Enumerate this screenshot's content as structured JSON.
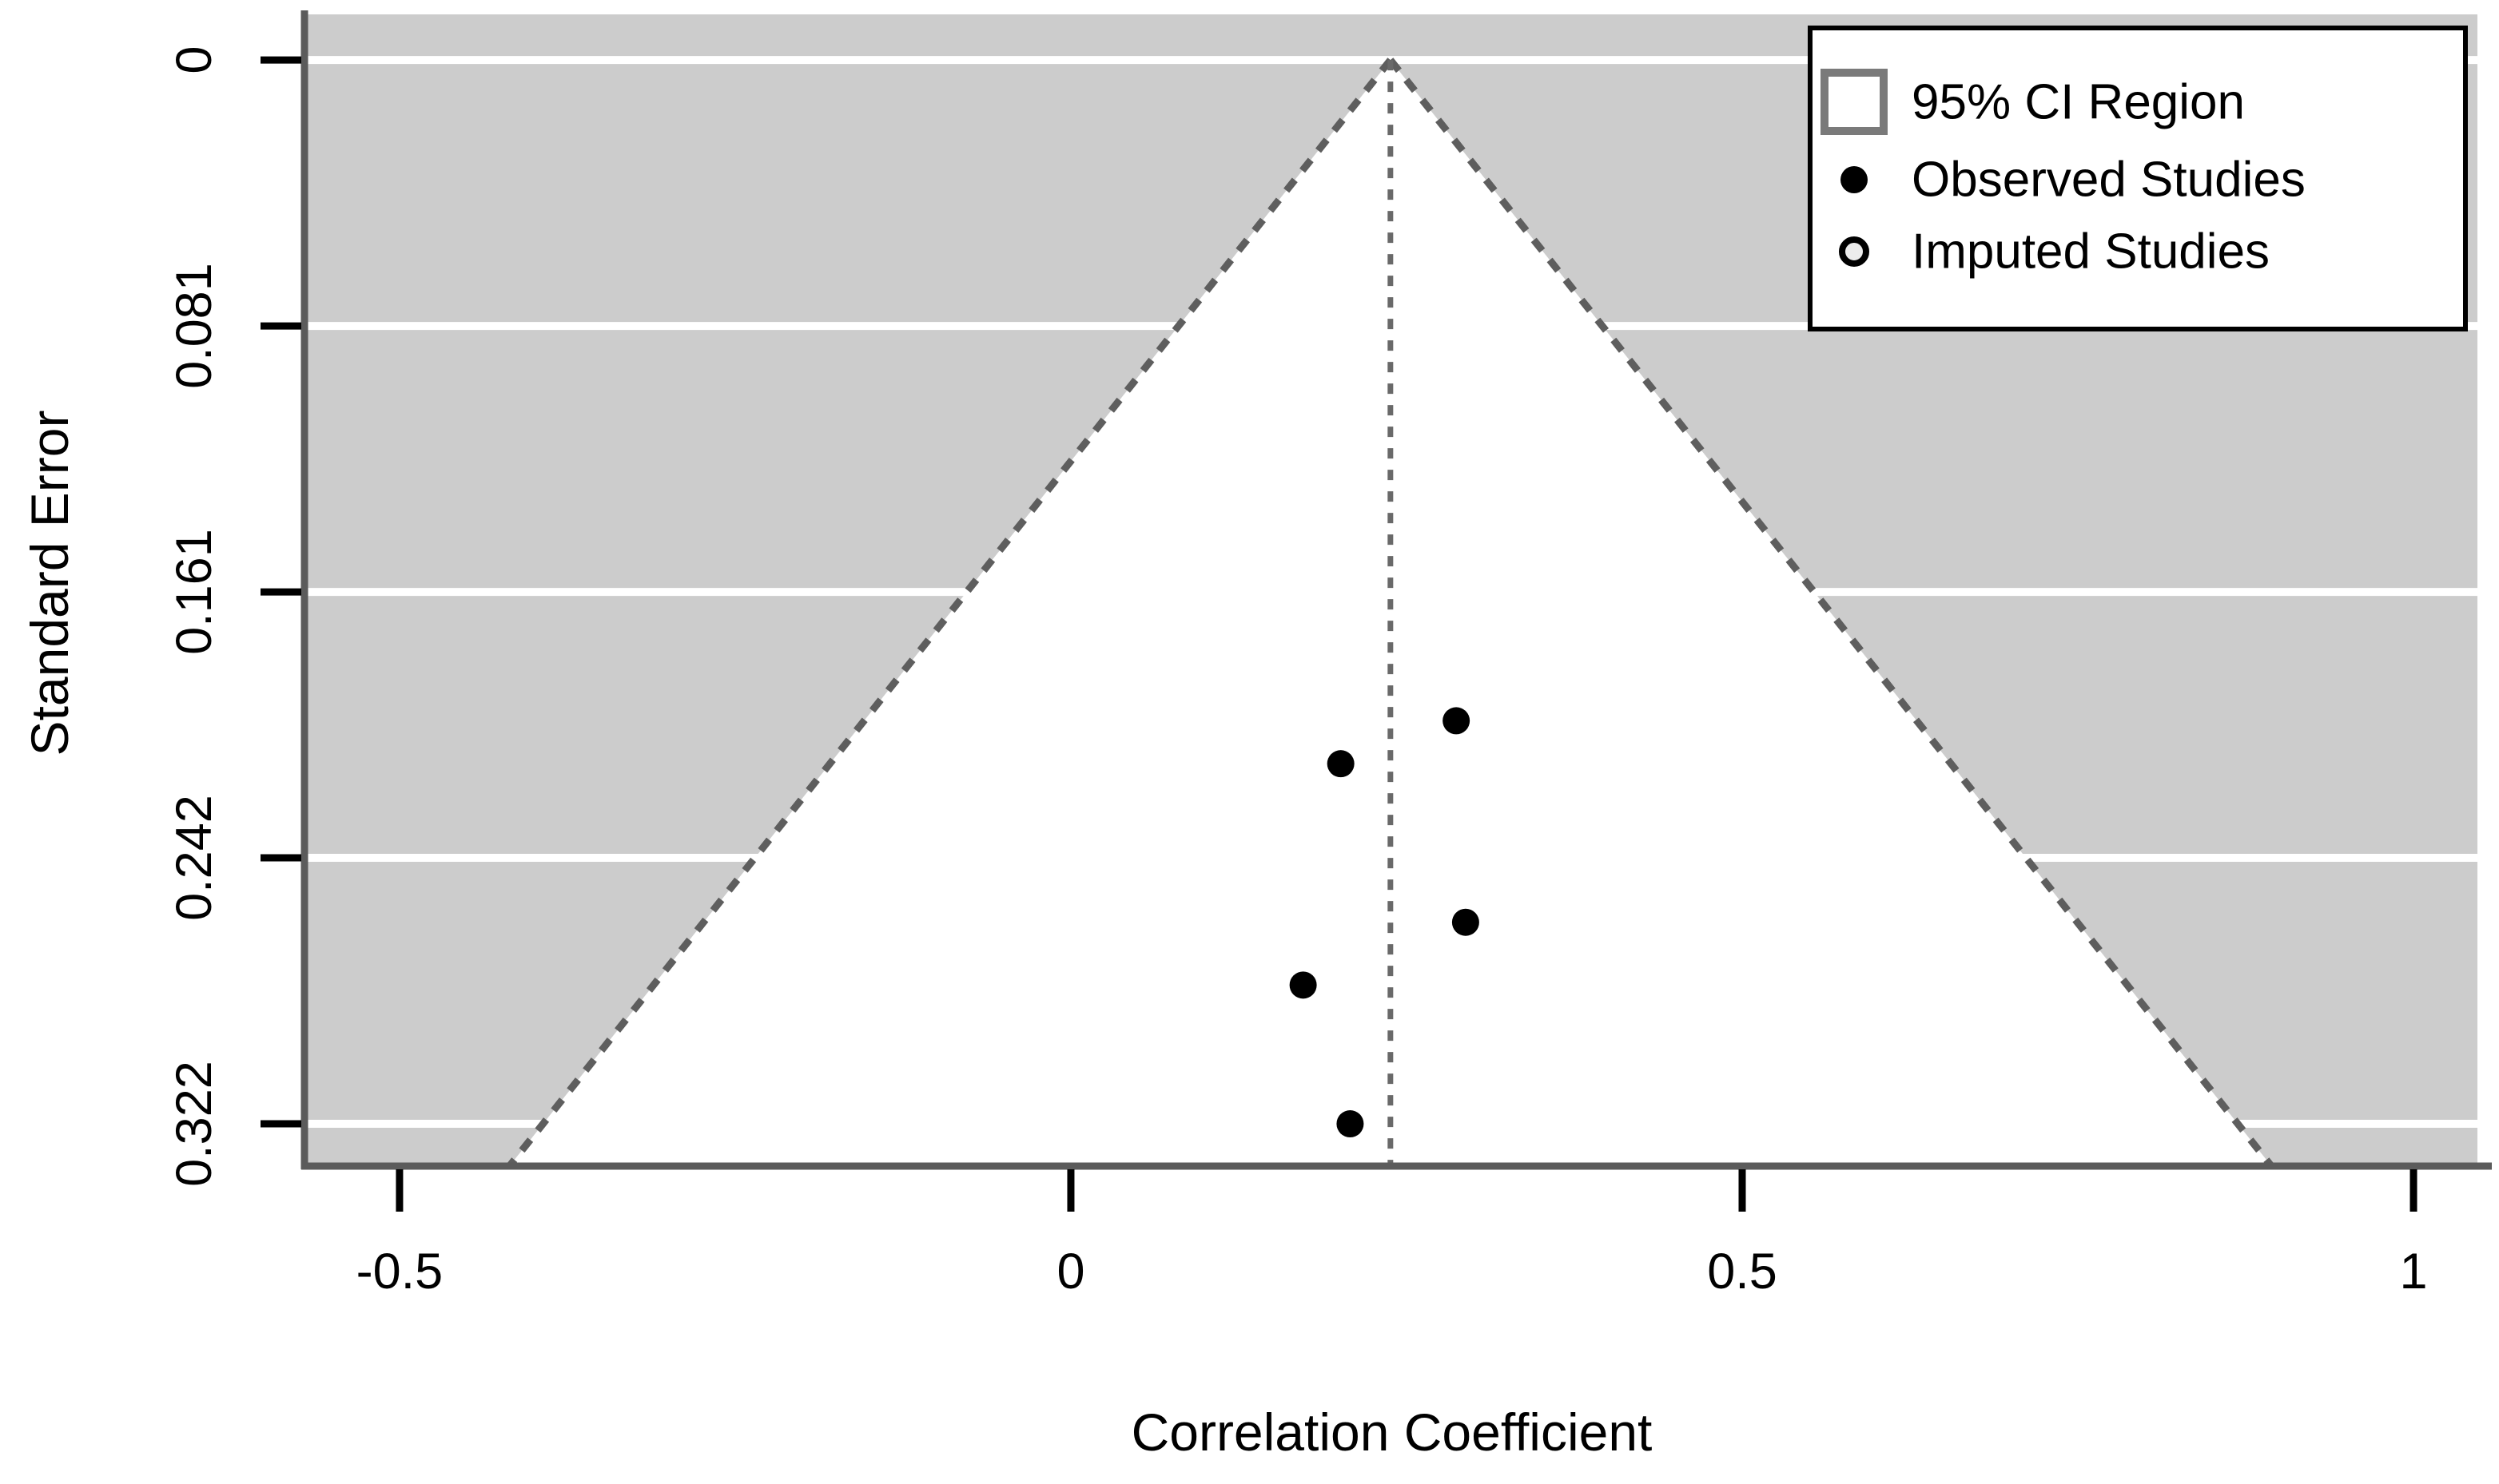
{
  "chart_data": {
    "type": "scatter",
    "variant": "funnel-plot-meta-analysis",
    "title": "",
    "xlabel": "Correlation Coefficient",
    "ylabel": "Standard Error",
    "x_ticks": {
      "values": [
        -0.5,
        0,
        0.5,
        1
      ],
      "labels": [
        "-0.5",
        "0",
        "0.5",
        "1"
      ]
    },
    "y_ticks": {
      "values": [
        0,
        0.0805,
        0.161,
        0.2415,
        0.322
      ],
      "labels": [
        "0",
        "0.081",
        "0.161",
        "0.242",
        "0.322"
      ]
    },
    "x_axis": {
      "plotted_min": -0.5696,
      "plotted_max": 1.0476
    },
    "y_axis": {
      "unit": "standard error",
      "reversed": true,
      "plotted_min": -0.0138,
      "plotted_max": 0.3348
    },
    "grid": {
      "white_horizontal_lines_at_y_ticks": true
    },
    "pooled_estimate": 0.238,
    "ci_multiplier": 1.96,
    "funnel": {
      "description": "95% pseudo-confidence triangle, white fill on gray background, dashed edges, dashed vertical line at pooled estimate",
      "apex": [
        0.238,
        0
      ]
    },
    "series": [
      {
        "name": "Observed Studies",
        "marker": "filled-circle",
        "points": [
          [
            0.287,
            0.2
          ],
          [
            0.201,
            0.213
          ],
          [
            0.294,
            0.261
          ],
          [
            0.173,
            0.28
          ],
          [
            0.208,
            0.322
          ]
        ]
      },
      {
        "name": "Imputed Studies",
        "marker": "open-circle",
        "points": []
      }
    ],
    "legend": {
      "position": "top-right",
      "entries": [
        {
          "label": "95% CI Region",
          "marker": "open-square"
        },
        {
          "label": "Observed Studies",
          "marker": "filled-circle"
        },
        {
          "label": "Imputed Studies",
          "marker": "open-circle"
        }
      ]
    },
    "colors": {
      "page_background": "#ffffff",
      "plot_background": "#cccccc",
      "funnel_fill": "#ffffff",
      "funnel_edge": "#5e5e5e",
      "estimate_line": "#696969",
      "gridline": "#ffffff",
      "axis_line": "#5b5b5b",
      "tick": "#000000",
      "text": "#000000",
      "point": "#000000",
      "legend_border": "#000000",
      "legend_fill": "#ffffff",
      "legend_square_border": "#7a7a7a",
      "open_circle_fill": "#ececec"
    }
  }
}
